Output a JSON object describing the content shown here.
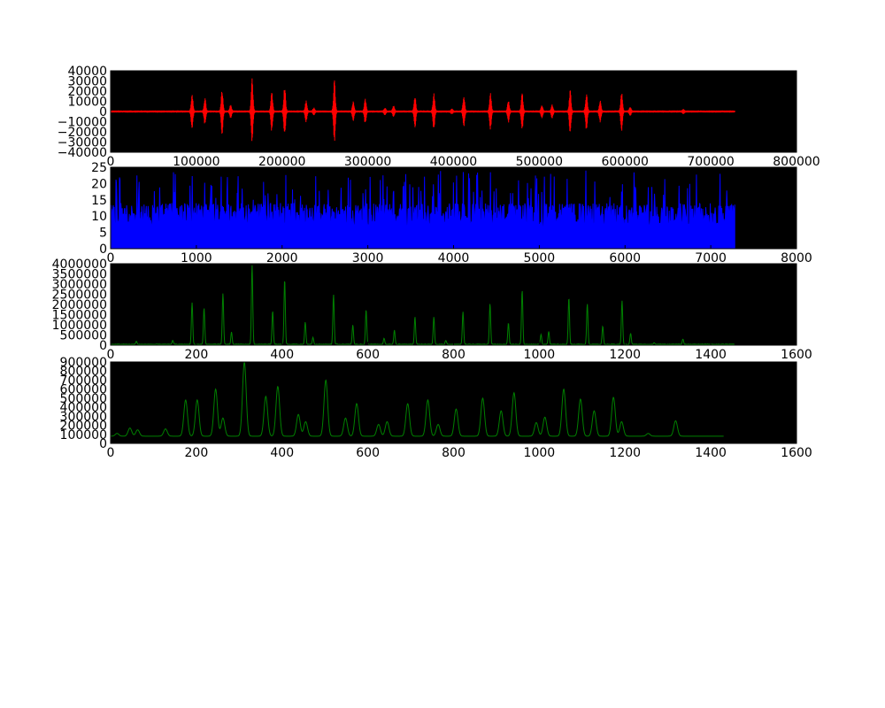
{
  "chart_data": [
    {
      "type": "line",
      "title": "",
      "xlabel": "",
      "ylabel": "",
      "xlim": [
        0,
        800000
      ],
      "ylim": [
        -40000,
        40000
      ],
      "x_ticks": [
        0,
        100000,
        200000,
        300000,
        400000,
        500000,
        600000,
        700000,
        800000
      ],
      "x_tick_labels": [
        "0",
        "100000",
        "200000",
        "300000",
        "400000",
        "500000",
        "600000",
        "700000",
        "800000"
      ],
      "y_ticks": [
        40000,
        30000,
        20000,
        10000,
        0,
        -10000,
        -20000,
        -30000,
        -40000
      ],
      "y_tick_labels": [
        "40000",
        "30000",
        "20000",
        "10000",
        "0",
        "−10000",
        "−20000",
        "−30000",
        "−40000"
      ],
      "background": "#000000",
      "color": "#ff0000",
      "baseline_amplitude": 1000,
      "x_range": [
        0,
        728000
      ],
      "bursts": [
        [
          95000,
          18000
        ],
        [
          110000,
          13000
        ],
        [
          130000,
          22000
        ],
        [
          140000,
          6000
        ],
        [
          165000,
          32000
        ],
        [
          188000,
          20000
        ],
        [
          203000,
          25000
        ],
        [
          228000,
          10000
        ],
        [
          237000,
          3000
        ],
        [
          261000,
          30000
        ],
        [
          283000,
          9000
        ],
        [
          297000,
          12000
        ],
        [
          320000,
          3000
        ],
        [
          330000,
          5000
        ],
        [
          355000,
          15000
        ],
        [
          377000,
          18000
        ],
        [
          398000,
          2000
        ],
        [
          412000,
          15000
        ],
        [
          443000,
          18000
        ],
        [
          464000,
          10000
        ],
        [
          480000,
          18000
        ],
        [
          503000,
          6000
        ],
        [
          515000,
          6000
        ],
        [
          536000,
          21000
        ],
        [
          555000,
          18000
        ],
        [
          571000,
          10000
        ],
        [
          596000,
          19000
        ],
        [
          606000,
          4000
        ],
        [
          668000,
          1500
        ]
      ]
    },
    {
      "type": "bar",
      "title": "",
      "xlabel": "",
      "ylabel": "",
      "xlim": [
        0,
        8000
      ],
      "ylim": [
        0,
        25
      ],
      "x_ticks": [
        0,
        1000,
        2000,
        3000,
        4000,
        5000,
        6000,
        7000,
        8000
      ],
      "x_tick_labels": [
        "0",
        "1000",
        "2000",
        "3000",
        "4000",
        "5000",
        "6000",
        "7000",
        "8000"
      ],
      "y_ticks": [
        0,
        5,
        10,
        15,
        20,
        25
      ],
      "y_tick_labels": [
        "0",
        "5",
        "10",
        "15",
        "20",
        "25"
      ],
      "background": "#000000",
      "color": "#0000ff",
      "x_range": [
        0,
        7280
      ],
      "value_range": [
        0,
        24
      ],
      "typical_value": 10
    },
    {
      "type": "line",
      "title": "",
      "xlabel": "",
      "ylabel": "",
      "xlim": [
        0,
        1600
      ],
      "ylim": [
        0,
        4000000
      ],
      "x_ticks": [
        0,
        200,
        400,
        600,
        800,
        1000,
        1200,
        1400,
        1600
      ],
      "x_tick_labels": [
        "0",
        "200",
        "400",
        "600",
        "800",
        "1000",
        "1200",
        "1400",
        "1600"
      ],
      "y_ticks": [
        4000000,
        3500000,
        3000000,
        2500000,
        2000000,
        1500000,
        1000000,
        500000,
        0
      ],
      "y_tick_labels": [
        "4000000",
        "3500000",
        "3000000",
        "2500000",
        "2000000",
        "1500000",
        "1000000",
        "500000",
        "0"
      ],
      "background": "#000000",
      "color": "#008000",
      "x_range": [
        0,
        1455
      ],
      "baseline": 40000,
      "peaks": [
        [
          60,
          150000
        ],
        [
          145,
          200000
        ],
        [
          190,
          2050000
        ],
        [
          218,
          1800000
        ],
        [
          262,
          2500000
        ],
        [
          282,
          600000
        ],
        [
          330,
          3900000
        ],
        [
          378,
          1650000
        ],
        [
          406,
          3200000
        ],
        [
          454,
          1100000
        ],
        [
          472,
          350000
        ],
        [
          520,
          2450000
        ],
        [
          565,
          950000
        ],
        [
          596,
          1700000
        ],
        [
          638,
          300000
        ],
        [
          662,
          700000
        ],
        [
          710,
          1350000
        ],
        [
          754,
          1350000
        ],
        [
          782,
          200000
        ],
        [
          822,
          1600000
        ],
        [
          885,
          2000000
        ],
        [
          928,
          1050000
        ],
        [
          960,
          2650000
        ],
        [
          1004,
          500000
        ],
        [
          1022,
          650000
        ],
        [
          1069,
          2300000
        ],
        [
          1112,
          2000000
        ],
        [
          1148,
          900000
        ],
        [
          1193,
          2150000
        ],
        [
          1213,
          550000
        ],
        [
          1268,
          80000
        ],
        [
          1335,
          260000
        ]
      ]
    },
    {
      "type": "line",
      "title": "",
      "xlabel": "",
      "ylabel": "",
      "xlim": [
        0,
        1600
      ],
      "ylim": [
        0,
        900000
      ],
      "x_ticks": [
        0,
        200,
        400,
        600,
        800,
        1000,
        1200,
        1400,
        1600
      ],
      "x_tick_labels": [
        "0",
        "200",
        "400",
        "600",
        "800",
        "1000",
        "1200",
        "1400",
        "1600"
      ],
      "y_ticks": [
        900000,
        800000,
        700000,
        600000,
        500000,
        400000,
        300000,
        200000,
        100000,
        0
      ],
      "y_tick_labels": [
        "900000",
        "800000",
        "700000",
        "600000",
        "500000",
        "400000",
        "300000",
        "200000",
        "100000",
        "0"
      ],
      "background": "#000000",
      "color": "#008000",
      "x_range": [
        0,
        1430
      ],
      "baseline": 80000,
      "peaks": [
        [
          15,
          30000
        ],
        [
          45,
          90000
        ],
        [
          63,
          70000
        ],
        [
          128,
          80000
        ],
        [
          175,
          400000
        ],
        [
          202,
          400000
        ],
        [
          245,
          520000
        ],
        [
          262,
          200000
        ],
        [
          312,
          820000
        ],
        [
          362,
          440000
        ],
        [
          390,
          550000
        ],
        [
          438,
          240000
        ],
        [
          455,
          160000
        ],
        [
          502,
          620000
        ],
        [
          548,
          200000
        ],
        [
          574,
          360000
        ],
        [
          625,
          130000
        ],
        [
          645,
          160000
        ],
        [
          693,
          360000
        ],
        [
          740,
          400000
        ],
        [
          764,
          130000
        ],
        [
          806,
          300000
        ],
        [
          868,
          420000
        ],
        [
          911,
          280000
        ],
        [
          941,
          480000
        ],
        [
          993,
          150000
        ],
        [
          1013,
          210000
        ],
        [
          1057,
          520000
        ],
        [
          1096,
          410000
        ],
        [
          1128,
          280000
        ],
        [
          1173,
          430000
        ],
        [
          1192,
          160000
        ],
        [
          1254,
          30000
        ],
        [
          1318,
          170000
        ]
      ]
    }
  ]
}
